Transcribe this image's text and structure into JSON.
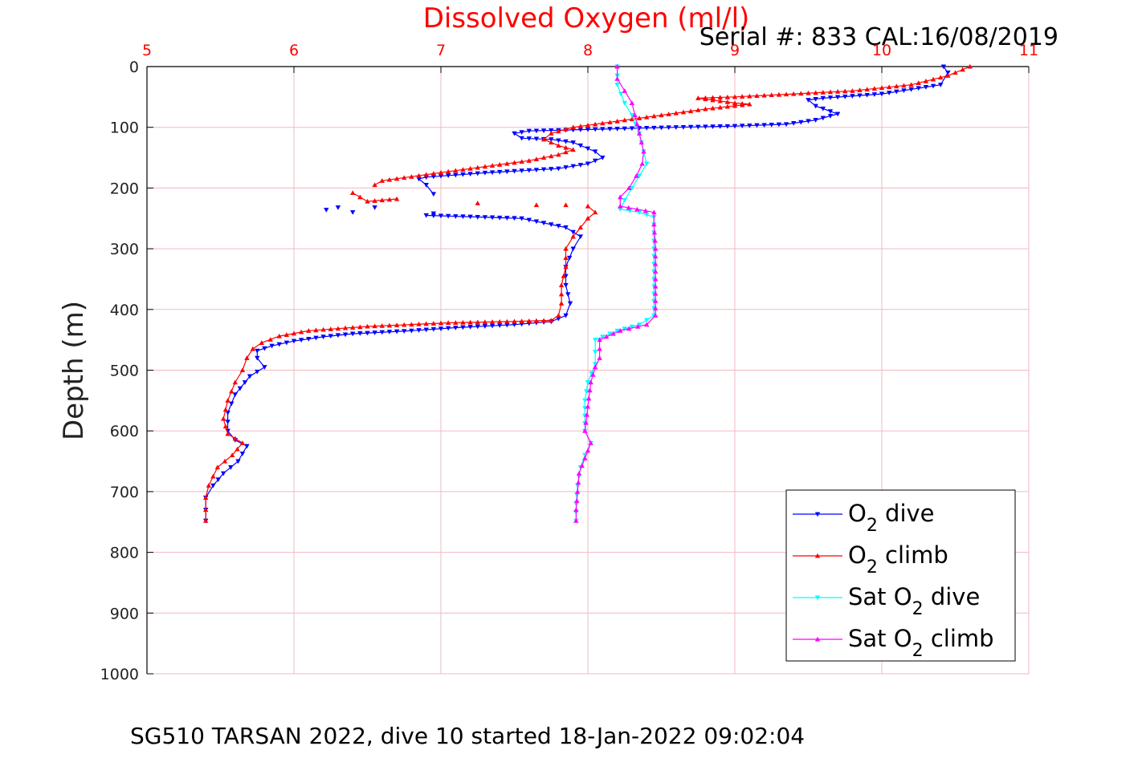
{
  "chart_data": {
    "type": "scatter",
    "title": "Dissolved Oxygen (ml/l)",
    "serial_label": "Serial #: 833  CAL:16/08/2019",
    "ylabel": "Depth (m)",
    "footer": "SG510 TARSAN 2022, dive 10 started 18-Jan-2022 09:02:04",
    "xlim": [
      5,
      11
    ],
    "ylim": [
      0,
      1000
    ],
    "y_reversed": true,
    "x_ticks": [
      "5",
      "6",
      "7",
      "8",
      "9",
      "10",
      "11"
    ],
    "y_ticks": [
      "0",
      "100",
      "200",
      "300",
      "400",
      "500",
      "600",
      "700",
      "800",
      "900",
      "1000"
    ],
    "x_axis_position": "top",
    "grid": true,
    "colors": {
      "title": "#ff0000",
      "x_ticks": "#ff0000",
      "grid": "#f2b8c0",
      "o2_dive": "#0000ff",
      "o2_climb": "#ff0000",
      "sat_dive": "#00ffff",
      "sat_climb": "#ff00ff"
    },
    "legend": {
      "placement": "bottom-right",
      "entries": [
        {
          "pre": "O",
          "sub": "2",
          "post": " dive"
        },
        {
          "pre": "O",
          "sub": "2",
          "post": " climb"
        },
        {
          "pre": "Sat O",
          "sub": "2",
          "post": " dive"
        },
        {
          "pre": "Sat O",
          "sub": "2",
          "post": " climb"
        }
      ]
    },
    "series": [
      {
        "key": "o2_dive",
        "marker": "triangle-down",
        "segments": [
          [
            [
              10.42,
              0
            ],
            [
              10.45,
              10
            ],
            [
              10.4,
              30
            ],
            [
              10.0,
              45
            ],
            [
              9.6,
              52
            ],
            [
              9.5,
              55
            ],
            [
              9.55,
              65
            ],
            [
              9.7,
              78
            ],
            [
              9.55,
              88
            ],
            [
              9.35,
              95
            ],
            [
              9.0,
              98
            ],
            [
              8.6,
              100
            ],
            [
              8.1,
              103
            ],
            [
              7.6,
              106
            ],
            [
              7.5,
              110
            ],
            [
              7.55,
              118
            ],
            [
              7.75,
              120
            ],
            [
              7.9,
              125
            ],
            [
              8.05,
              140
            ],
            [
              8.1,
              150
            ],
            [
              8.0,
              160
            ],
            [
              7.8,
              168
            ],
            [
              7.3,
              175
            ],
            [
              6.9,
              182
            ],
            [
              6.85,
              185
            ],
            [
              6.9,
              195
            ],
            [
              6.95,
              210
            ]
          ],
          [
            [
              6.9,
              245
            ],
            [
              7.55,
              250
            ],
            [
              7.85,
              265
            ],
            [
              7.95,
              280
            ],
            [
              7.9,
              300
            ],
            [
              7.85,
              330
            ],
            [
              7.85,
              360
            ],
            [
              7.88,
              390
            ],
            [
              7.85,
              410
            ],
            [
              7.75,
              420
            ],
            [
              7.5,
              425
            ],
            [
              7.1,
              430
            ],
            [
              6.8,
              435
            ],
            [
              6.4,
              440
            ],
            [
              6.2,
              445
            ],
            [
              6.0,
              452
            ],
            [
              5.85,
              460
            ],
            [
              5.75,
              468
            ],
            [
              5.75,
              480
            ],
            [
              5.8,
              495
            ],
            [
              5.7,
              510
            ],
            [
              5.6,
              540
            ],
            [
              5.55,
              570
            ],
            [
              5.55,
              600
            ],
            [
              5.6,
              615
            ],
            [
              5.68,
              625
            ],
            [
              5.62,
              650
            ],
            [
              5.52,
              670
            ],
            [
              5.45,
              690
            ],
            [
              5.4,
              710
            ],
            [
              5.4,
              730
            ],
            [
              5.4,
              748
            ]
          ]
        ],
        "isolated": [
          [
            6.22,
            236
          ],
          [
            6.3,
            232
          ],
          [
            6.4,
            240
          ],
          [
            6.55,
            232
          ],
          [
            6.95,
            242
          ]
        ]
      },
      {
        "key": "o2_climb",
        "marker": "triangle-up",
        "segments": [
          [
            [
              10.6,
              0
            ],
            [
              10.45,
              15
            ],
            [
              10.2,
              30
            ],
            [
              9.8,
              40
            ],
            [
              9.4,
              45
            ],
            [
              9.0,
              50
            ],
            [
              8.75,
              52
            ],
            [
              9.0,
              60
            ],
            [
              9.1,
              62
            ],
            [
              8.8,
              70
            ],
            [
              8.5,
              80
            ],
            [
              8.2,
              90
            ],
            [
              7.9,
              100
            ],
            [
              7.75,
              110
            ],
            [
              7.7,
              120
            ],
            [
              7.8,
              130
            ],
            [
              7.9,
              137
            ],
            [
              7.8,
              145
            ],
            [
              7.6,
              155
            ],
            [
              7.2,
              168
            ],
            [
              6.9,
              178
            ],
            [
              6.6,
              188
            ],
            [
              6.55,
              195
            ]
          ],
          [
            [
              6.4,
              208
            ],
            [
              6.5,
              222
            ],
            [
              6.7,
              218
            ]
          ],
          [
            [
              8.0,
              230
            ],
            [
              8.05,
              240
            ],
            [
              8.0,
              250
            ],
            [
              7.95,
              265
            ],
            [
              7.9,
              280
            ],
            [
              7.85,
              300
            ],
            [
              7.85,
              330
            ],
            [
              7.82,
              360
            ],
            [
              7.82,
              390
            ],
            [
              7.8,
              410
            ],
            [
              7.75,
              418
            ],
            [
              7.45,
              420
            ],
            [
              7.05,
              422
            ],
            [
              6.5,
              428
            ],
            [
              6.1,
              435
            ],
            [
              5.9,
              444
            ],
            [
              5.78,
              455
            ],
            [
              5.72,
              465
            ],
            [
              5.68,
              480
            ],
            [
              5.65,
              500
            ],
            [
              5.6,
              520
            ],
            [
              5.55,
              550
            ],
            [
              5.52,
              580
            ],
            [
              5.55,
              605
            ],
            [
              5.65,
              620
            ],
            [
              5.58,
              640
            ],
            [
              5.48,
              660
            ],
            [
              5.42,
              690
            ],
            [
              5.4,
              710
            ],
            [
              5.4,
              730
            ],
            [
              5.4,
              748
            ]
          ]
        ],
        "isolated": [
          [
            7.25,
            225
          ],
          [
            7.85,
            228
          ],
          [
            7.65,
            228
          ]
        ]
      },
      {
        "key": "sat_dive",
        "marker": "triangle-down",
        "segments": [
          [
            [
              8.2,
              0
            ],
            [
              8.2,
              30
            ],
            [
              8.25,
              60
            ],
            [
              8.3,
              80
            ],
            [
              8.35,
              110
            ],
            [
              8.38,
              140
            ],
            [
              8.4,
              160
            ],
            [
              8.35,
              180
            ],
            [
              8.3,
              200
            ],
            [
              8.25,
              220
            ],
            [
              8.22,
              235
            ],
            [
              8.35,
              240
            ],
            [
              8.45,
              248
            ],
            [
              8.45,
              260
            ],
            [
              8.45,
              300
            ],
            [
              8.45,
              350
            ],
            [
              8.45,
              410
            ],
            [
              8.35,
              425
            ],
            [
              8.2,
              435
            ],
            [
              8.05,
              450
            ],
            [
              8.05,
              470
            ],
            [
              8.05,
              490
            ],
            [
              8.0,
              520
            ],
            [
              7.98,
              550
            ],
            [
              7.98,
              600
            ],
            [
              8.02,
              620
            ],
            [
              7.98,
              640
            ],
            [
              7.95,
              660
            ],
            [
              7.93,
              690
            ],
            [
              7.92,
              720
            ],
            [
              7.92,
              748
            ]
          ]
        ],
        "isolated": []
      },
      {
        "key": "sat_climb",
        "marker": "triangle-up",
        "segments": [
          [
            [
              8.2,
              0
            ],
            [
              8.2,
              20
            ],
            [
              8.25,
              40
            ],
            [
              8.3,
              60
            ],
            [
              8.32,
              80
            ],
            [
              8.35,
              110
            ],
            [
              8.38,
              140
            ],
            [
              8.37,
              160
            ],
            [
              8.33,
              180
            ],
            [
              8.28,
              200
            ],
            [
              8.22,
              215
            ],
            [
              8.22,
              230
            ],
            [
              8.45,
              240
            ],
            [
              8.45,
              260
            ],
            [
              8.46,
              300
            ],
            [
              8.46,
              350
            ],
            [
              8.46,
              410
            ],
            [
              8.4,
              425
            ],
            [
              8.22,
              435
            ],
            [
              8.08,
              450
            ],
            [
              8.08,
              480
            ],
            [
              8.05,
              495
            ],
            [
              8.02,
              520
            ],
            [
              8.0,
              560
            ],
            [
              7.98,
              600
            ],
            [
              8.02,
              620
            ],
            [
              7.98,
              645
            ],
            [
              7.94,
              670
            ],
            [
              7.93,
              700
            ],
            [
              7.92,
              730
            ],
            [
              7.92,
              748
            ]
          ]
        ],
        "isolated": []
      }
    ]
  }
}
